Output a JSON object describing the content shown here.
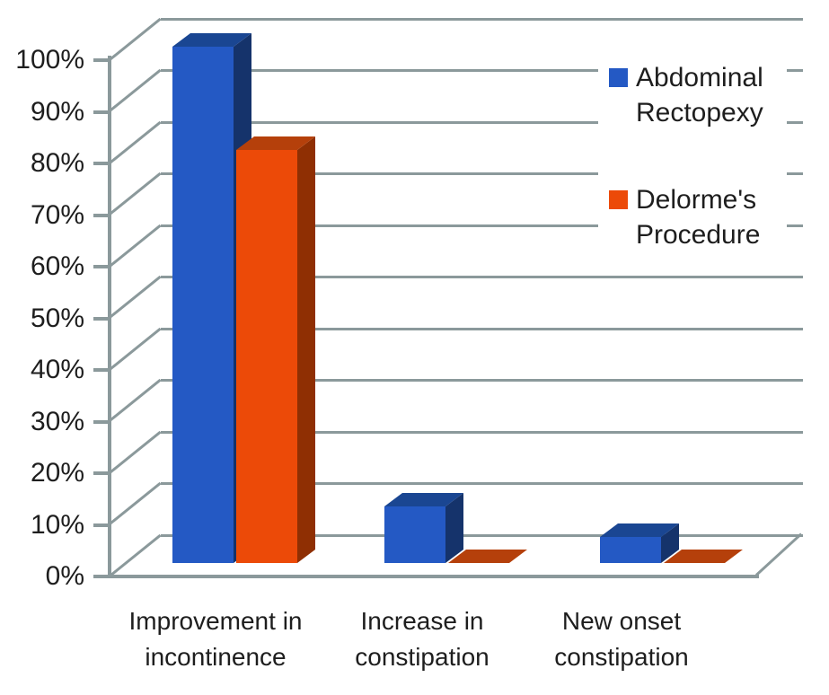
{
  "chart_data": {
    "type": "bar",
    "variant": "3d-clustered-column",
    "title": "",
    "categories": [
      "Improvement in incontinence",
      "Increase in constipation",
      "New onset constipation"
    ],
    "series": [
      {
        "name": "Abdominal Rectopexy",
        "values": [
          100,
          11,
          5
        ],
        "colors": {
          "front": "#2459C4",
          "top": "#1A4692",
          "side": "#15336B"
        }
      },
      {
        "name": "Delorme's Procedure",
        "values": [
          80,
          0,
          0
        ],
        "colors": {
          "front": "#EC4A08",
          "top": "#B5400B",
          "side": "#8F2F03"
        }
      }
    ],
    "xlabel": "",
    "ylabel": "",
    "ylim": [
      0,
      100
    ],
    "ytick_step": 10,
    "ytick_labels": [
      "0%",
      "10%",
      "20%",
      "30%",
      "40%",
      "50%",
      "60%",
      "70%",
      "80%",
      "90%",
      "100%"
    ],
    "grid": true,
    "legend_position": "right",
    "gridline_color": "#8B999B",
    "text_color": "#1E1E1E",
    "background": "#FFFFFF"
  }
}
